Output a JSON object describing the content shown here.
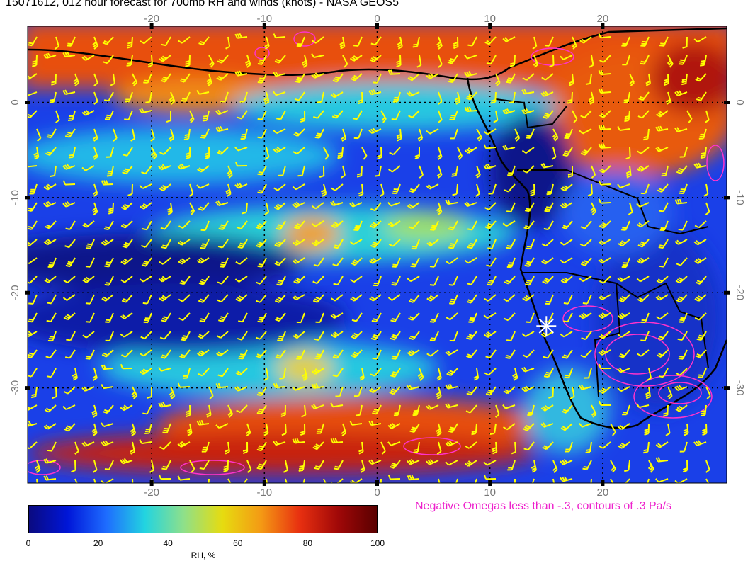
{
  "title": "15071612, 012 hour forecast for 700mb RH and winds (knots) - NASA GEOS5",
  "map": {
    "lon_range": [
      -31,
      31
    ],
    "lat_range": [
      -40,
      8
    ],
    "lon_ticks": [
      "-20",
      "-10",
      "0",
      "10",
      "20"
    ],
    "lat_ticks": [
      "0",
      "-10",
      "-20",
      "-30"
    ],
    "gridlines": "dotted",
    "wind_barb_color": "#ffff00",
    "coastline_color": "#000000",
    "omega_contour_color": "#ff33cc",
    "marker": {
      "symbol": "asterisk",
      "lon": 15,
      "lat": -23.5,
      "color": "#ffffff"
    }
  },
  "omega_note": {
    "text": "Negative Omegas less than -.3, contours of .3 Pa/s",
    "color": "#ee22cc"
  },
  "colorbar": {
    "label": "RH, %",
    "ticks": [
      "0",
      "20",
      "40",
      "60",
      "80",
      "100"
    ],
    "range": [
      0,
      100
    ],
    "stops": [
      "#0a0a80",
      "#0016d8",
      "#1e6cff",
      "#22d4e0",
      "#8ee08a",
      "#e6dc10",
      "#f49a14",
      "#e83010",
      "#a00808",
      "#5a0000"
    ]
  }
}
